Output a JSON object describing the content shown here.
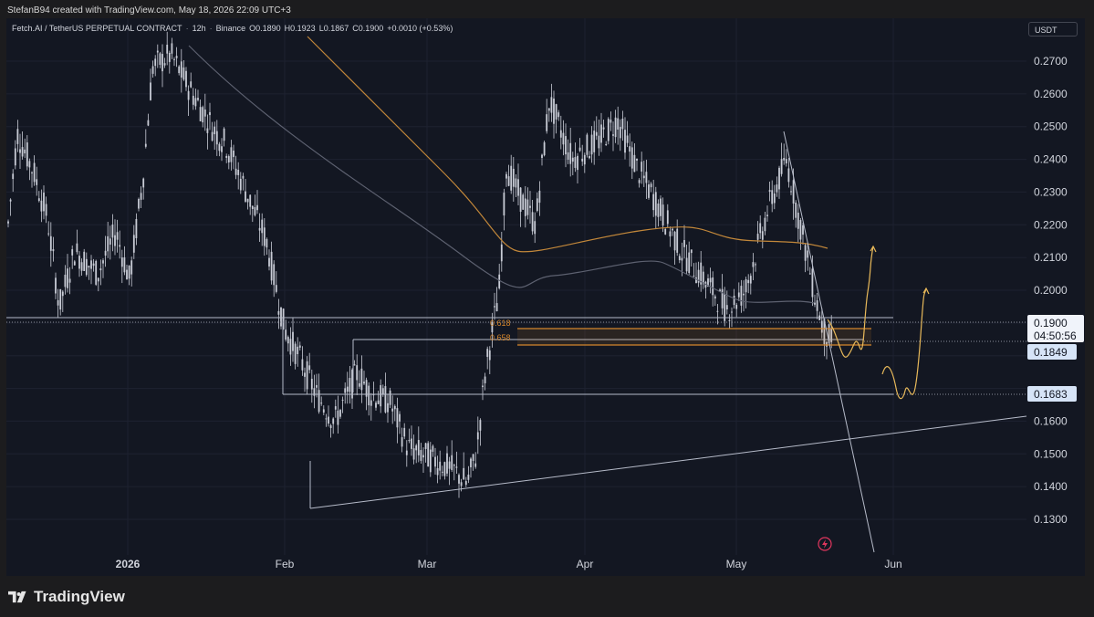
{
  "header": {
    "credit": "StefanB94 created with TradingView.com, May 18, 2026 22:09 UTC+3"
  },
  "legend": {
    "symbol": "Fetch.AI / TetherUS PERPETUAL CONTRACT",
    "interval": "12h",
    "exchange": "Binance",
    "open": "O0.1890",
    "high": "H0.1923",
    "low": "L0.1867",
    "close": "C0.1900",
    "change": "+0.0010 (+0.53%)"
  },
  "currency": "USDT",
  "price_axis": {
    "ticks": [
      "0.2700",
      "0.2600",
      "0.2500",
      "0.2400",
      "0.2300",
      "0.2200",
      "0.2100",
      "0.2000",
      "0.1600",
      "0.1500",
      "0.1400",
      "0.1300"
    ],
    "current_price": "0.1900",
    "countdown": "04:50:56",
    "labels": [
      "0.1849",
      "0.1683"
    ]
  },
  "time_axis": {
    "labels": [
      "2026",
      "Feb",
      "Mar",
      "Apr",
      "May",
      "Jun"
    ]
  },
  "fib_labels": [
    "0.618",
    "0.658"
  ],
  "colors": {
    "background": "#131722",
    "candle": "#c9ccd6",
    "ma_orange": "#c2873a",
    "ma_gray": "#5d6170",
    "projection": "#e8b95a",
    "fib": "#d4862c",
    "line": "#b6bbc9"
  },
  "icons": {
    "flash": "lightning-icon"
  },
  "branding": {
    "name": "TradingView"
  }
}
